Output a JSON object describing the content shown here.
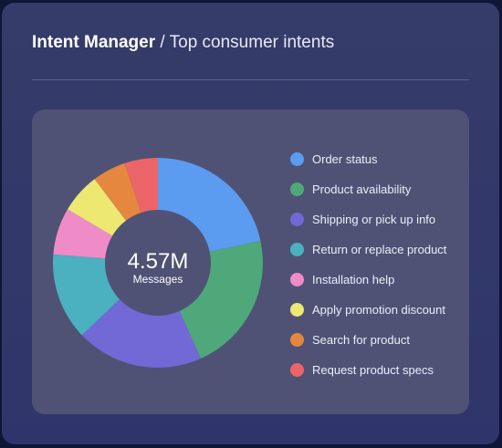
{
  "header": {
    "app_title": "Intent Manager",
    "separator": "/",
    "subtitle": "Top consumer intents"
  },
  "chart_data": {
    "type": "pie",
    "donut": true,
    "center_value": "4.57M",
    "center_label": "Messages",
    "legend_position": "right",
    "categories": [
      "Order status",
      "Product availability",
      "Shipping or pick up info",
      "Return or replace product",
      "Installation help",
      "Apply promotion discount",
      "Search for product",
      "Request product specs"
    ],
    "values": [
      21,
      21,
      19,
      13,
      7,
      6,
      5,
      5
    ],
    "colors": [
      "#5b9bf0",
      "#4ea87a",
      "#7268d6",
      "#4bb0bf",
      "#ef8bc6",
      "#ece872",
      "#e6873f",
      "#ec6568"
    ]
  }
}
